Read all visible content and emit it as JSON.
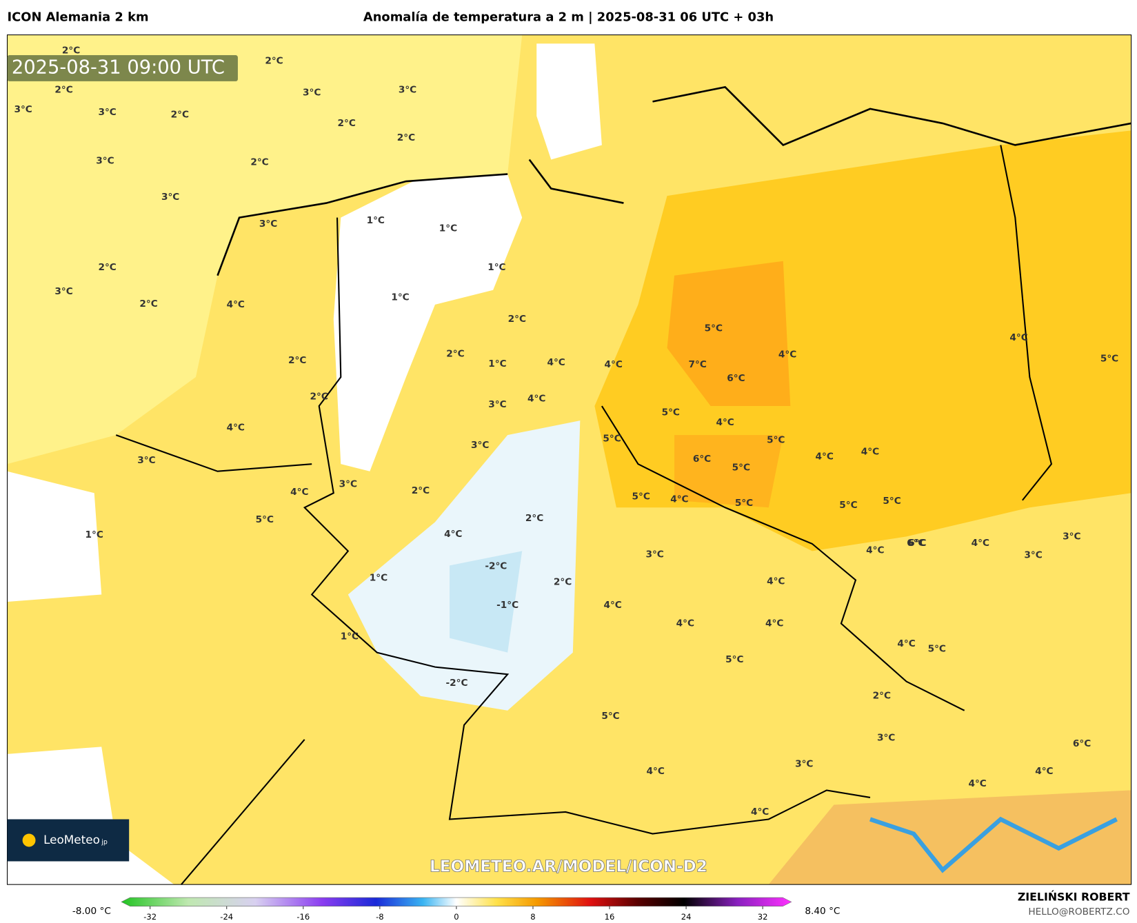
{
  "header": {
    "model": "ICON Alemania 2 km",
    "title": "Anomalía de temperatura a 2 m | 2025-08-31 06 UTC + 03h"
  },
  "map": {
    "timestamp": "2025-08-31 09:00 UTC",
    "watermark": "LEOMETEO.AR/MODEL/ICON-D2",
    "labels": [
      "2°C",
      "2°C",
      "3°C",
      "2°C",
      "3°C",
      "2°C",
      "3°C",
      "2°C",
      "3°C",
      "2°C",
      "3°C",
      "2°C",
      "3°C",
      "4°C",
      "4°C",
      "3°C",
      "2°C",
      "3°C",
      "5°C",
      "4°C",
      "2°C",
      "1°C",
      "1°C",
      "1°C",
      "2°C",
      "2°C",
      "1°C",
      "2°C",
      "1°C",
      "2°C",
      "3°C",
      "4°C",
      "3°C",
      "4°C",
      "3°C",
      "5°C",
      "4°C",
      "4°C",
      "5°C",
      "6°C",
      "4°C",
      "5°C",
      "5°C",
      "4°C",
      "4°C",
      "5°C",
      "7°C",
      "6°C",
      "5°C",
      "4°C",
      "6°C",
      "5°C",
      "5°C",
      "4°C",
      "4°C",
      "4°C",
      "5°C",
      "5°C",
      "4°C",
      "4°C",
      "6°C",
      "4°C",
      "4°C",
      "3°C",
      "-1°C",
      "-2°C",
      "-2°C",
      "1°C",
      "1°C",
      "2°C",
      "4°C",
      "5°C",
      "4°C",
      "3°C",
      "2°C",
      "3°C",
      "4°C",
      "3°C",
      "6°C",
      "4°C",
      "2°C",
      "1°C",
      "3°C",
      "5°C",
      "4°C",
      "3°C",
      "2°C",
      "5°C",
      "4°C"
    ]
  },
  "logo": {
    "name": "LeoMeteo",
    "suffix": "jp"
  },
  "colorbar": {
    "min_label": "-8.00 °C",
    "max_label": "8.40 °C",
    "lim": [
      -35,
      35
    ],
    "ticks": [
      -32,
      -24,
      -16,
      -8,
      0,
      8,
      16,
      24,
      32
    ]
  },
  "credits": {
    "author": "ZIELIŃSKI ROBERT",
    "contact": "HELLO@ROBERTZ.CO"
  }
}
